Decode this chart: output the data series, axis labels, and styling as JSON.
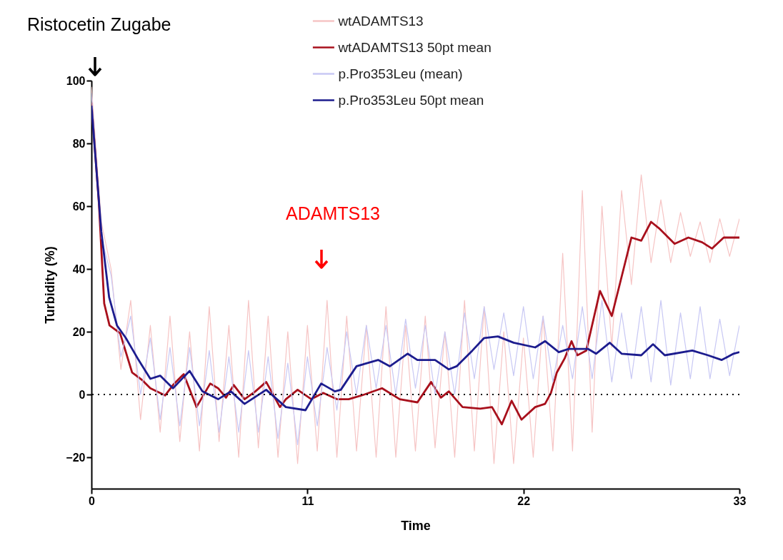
{
  "chart_data": {
    "type": "line",
    "xlabel": "Time",
    "ylabel": "Turbidity (%)",
    "xlim": [
      0,
      33
    ],
    "xticks": [
      0,
      11,
      22,
      33
    ],
    "ylim": [
      -30,
      100
    ],
    "yticks": [
      -20,
      0,
      20,
      40,
      60,
      80,
      100
    ],
    "grid": false,
    "legend": "top",
    "annotations": [
      "Ristocetin Zugabe",
      "ADAMTS13"
    ],
    "ref_lines": [
      {
        "axis": "y",
        "value": 0,
        "line_style": "dotted",
        "color": "#000000"
      }
    ],
    "series": [
      {
        "name": "wtADAMTS13",
        "color": "#f6c4c4",
        "x": [
          0,
          0.5,
          1,
          1.5,
          2,
          2.5,
          3,
          3.5,
          4,
          4.5,
          5,
          5.5,
          6,
          6.5,
          7,
          7.5,
          8,
          8.5,
          9,
          9.5,
          10,
          10.5,
          11,
          11.5,
          12,
          12.5,
          13,
          13.5,
          14,
          14.5,
          15,
          15.5,
          16,
          16.5,
          17,
          17.5,
          18,
          18.5,
          19,
          19.5,
          20,
          20.5,
          21,
          21.5,
          22,
          22.5,
          23,
          23.5,
          24,
          24.5,
          25,
          25.5,
          26,
          26.5,
          27,
          27.5,
          28,
          28.5,
          29,
          29.5,
          30,
          30.5,
          31,
          31.5,
          32,
          32.5,
          33
        ],
        "values": [
          98,
          55,
          40,
          8,
          30,
          -8,
          22,
          -12,
          25,
          -15,
          20,
          -18,
          28,
          -15,
          22,
          -20,
          30,
          -17,
          25,
          -20,
          20,
          -22,
          22,
          -18,
          30,
          -20,
          25,
          -18,
          22,
          -20,
          28,
          -20,
          22,
          -18,
          25,
          -17,
          20,
          -20,
          30,
          -18,
          28,
          -22,
          20,
          -22,
          18,
          -20,
          25,
          -18,
          45,
          -18,
          65,
          -12,
          60,
          15,
          65,
          35,
          70,
          42,
          62,
          42,
          58,
          44,
          55,
          42,
          56,
          44,
          56
        ]
      },
      {
        "name": "wtADAMTS13 50pt mean",
        "color": "#a8101c",
        "x": [
          0,
          0.38,
          0.65,
          0.92,
          1.46,
          2.07,
          2.6,
          3.0,
          3.75,
          4.15,
          4.7,
          5.35,
          6.05,
          6.45,
          6.85,
          7.25,
          7.8,
          8.35,
          8.9,
          9.6,
          9.9,
          10.5,
          11.2,
          11.8,
          12.5,
          13.1,
          13.9,
          14.8,
          15.7,
          16.6,
          17.3,
          17.8,
          18.2,
          18.9,
          19.8,
          20.4,
          20.9,
          21.4,
          21.9,
          22.6,
          23.1,
          23.4,
          23.7,
          24.1,
          24.45,
          24.75,
          25.2,
          25.9,
          26.5,
          27.5,
          28.0,
          28.5,
          28.9,
          29.7,
          30.4,
          31.1,
          31.6,
          32.2,
          33
        ],
        "values": [
          93,
          61,
          29,
          22,
          19.5,
          7,
          4.5,
          2,
          -0.3,
          3,
          6.5,
          -4,
          3.5,
          2,
          -1,
          3,
          -1.5,
          1,
          4,
          -4,
          -1.5,
          1.5,
          -1.5,
          0.5,
          -1.5,
          -1.5,
          0,
          2,
          -1.5,
          -2.5,
          4,
          -1,
          1,
          -4,
          -4.5,
          -4,
          -9.5,
          -2,
          -8,
          -4,
          -3,
          0.5,
          7,
          11.5,
          17,
          12.5,
          14,
          33,
          25,
          50,
          49,
          55,
          53,
          48,
          50,
          48.5,
          46.5,
          50,
          50
        ]
      },
      {
        "name": "p.Pro353Leu (mean)",
        "color": "#c8c8f4",
        "x": [
          0,
          0.5,
          1,
          1.5,
          2,
          2.5,
          3,
          3.5,
          4,
          4.5,
          5,
          5.5,
          6,
          6.5,
          7,
          7.5,
          8,
          8.5,
          9,
          9.5,
          10,
          10.5,
          11,
          11.5,
          12,
          12.5,
          13,
          13.5,
          14,
          14.5,
          15,
          15.5,
          16,
          16.5,
          17,
          17.5,
          18,
          18.5,
          19,
          19.5,
          20,
          20.5,
          21,
          21.5,
          22,
          22.5,
          23,
          23.5,
          24,
          24.5,
          25,
          25.5,
          26,
          26.5,
          27,
          27.5,
          28,
          28.5,
          29,
          29.5,
          30,
          30.5,
          31,
          31.5,
          32,
          32.5,
          33
        ],
        "values": [
          96,
          50,
          38,
          12,
          25,
          0,
          18,
          -8,
          15,
          -10,
          15,
          -10,
          14,
          -12,
          12,
          -12,
          14,
          -12,
          12,
          -14,
          10,
          -16,
          12,
          -10,
          15,
          -5,
          20,
          0,
          22,
          2,
          22,
          0,
          24,
          2,
          22,
          0,
          20,
          0,
          26,
          5,
          28,
          8,
          26,
          6,
          28,
          5,
          25,
          4,
          22,
          5,
          28,
          5,
          30,
          4,
          26,
          5,
          28,
          4,
          30,
          3,
          26,
          5,
          28,
          5,
          24,
          6,
          22
        ]
      },
      {
        "name": "p.Pro353Leu 50pt mean",
        "color": "#1c1c8e",
        "x": [
          0,
          0.5,
          0.9,
          1.3,
          1.75,
          2.4,
          3.0,
          3.5,
          4.15,
          5.0,
          5.65,
          6.45,
          7.1,
          7.8,
          8.9,
          9.9,
          10.9,
          11.7,
          12.4,
          12.7,
          13.5,
          14.6,
          15.2,
          16.1,
          16.6,
          17.5,
          18.2,
          18.6,
          19.4,
          20.0,
          20.7,
          21.5,
          22.6,
          23.1,
          23.8,
          24.3,
          25.3,
          25.7,
          26.4,
          27.0,
          28.0,
          28.6,
          29.2,
          30.6,
          31.4,
          32.1,
          32.7,
          33
        ],
        "values": [
          92,
          52,
          31,
          22,
          18,
          11,
          5,
          6,
          2,
          7.5,
          1,
          -1.5,
          1,
          -3,
          1.5,
          -4,
          -5,
          3.5,
          1,
          1.5,
          9,
          11,
          9,
          13,
          11,
          11,
          8,
          9,
          14,
          18,
          18.5,
          16.5,
          15,
          17,
          13.5,
          14.5,
          14.5,
          13,
          16.5,
          13,
          12.5,
          16,
          12.5,
          14,
          12.5,
          11,
          13,
          13.5
        ]
      }
    ]
  }
}
